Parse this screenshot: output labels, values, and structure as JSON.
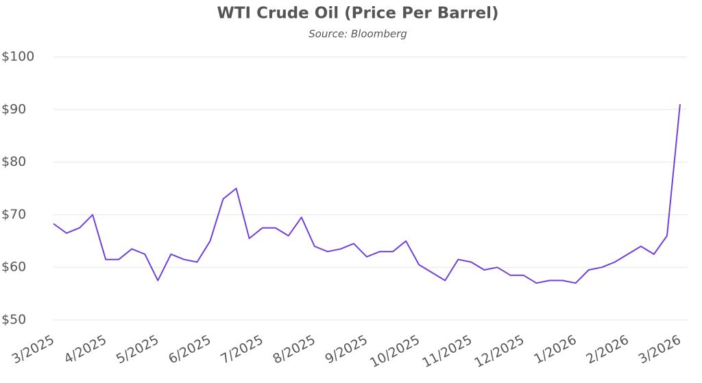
{
  "chart_data": {
    "type": "line",
    "title": "WTI Crude Oil (Price Per Barrel)",
    "subtitle": "Source: Bloomberg",
    "categories": [
      "3/2025",
      null,
      null,
      null,
      "4/2025",
      null,
      null,
      null,
      "5/2025",
      null,
      null,
      null,
      "6/2025",
      null,
      null,
      null,
      "7/2025",
      null,
      null,
      null,
      "8/2025",
      null,
      null,
      null,
      "9/2025",
      null,
      null,
      null,
      "10/2025",
      null,
      null,
      null,
      "11/2025",
      null,
      null,
      null,
      "12/2025",
      null,
      null,
      null,
      "1/2026",
      null,
      null,
      null,
      "2/2026",
      null,
      null,
      null,
      "3/2026"
    ],
    "series": [
      {
        "name": "WTI",
        "color": "#6f3fdc",
        "values": [
          68.3,
          66.5,
          67.5,
          70,
          61.5,
          61.5,
          63.5,
          62.5,
          57.5,
          62.5,
          61.5,
          61,
          65,
          73,
          75,
          65.5,
          67.5,
          67.5,
          66,
          69.5,
          64,
          63,
          63.5,
          64.5,
          62,
          63,
          63,
          65,
          60.5,
          59,
          57.5,
          61.5,
          61,
          59.5,
          60,
          58.5,
          58.5,
          57,
          57.5,
          57.5,
          57,
          59.5,
          60,
          61,
          62.5,
          64,
          62.5,
          66,
          91
        ]
      }
    ],
    "ylim": [
      50,
      100
    ],
    "yticks": [
      {
        "value": 50,
        "label": "$50"
      },
      {
        "value": 60,
        "label": "$60"
      },
      {
        "value": 70,
        "label": "$70"
      },
      {
        "value": 80,
        "label": "$80"
      },
      {
        "value": 90,
        "label": "$90"
      },
      {
        "value": 100,
        "label": "$100"
      }
    ],
    "grid": true
  }
}
